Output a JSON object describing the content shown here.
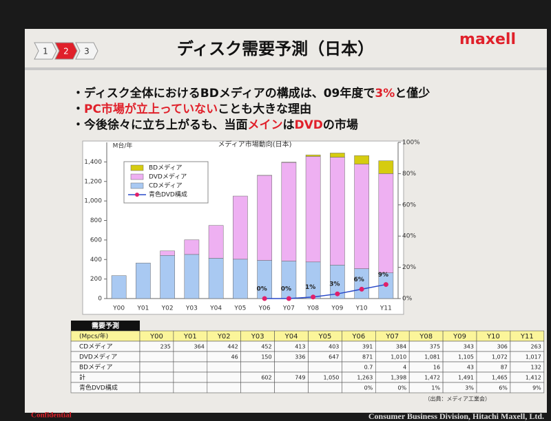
{
  "slide": {
    "title": "ディスク需要予測（日本）",
    "logo": "maxell",
    "nav": [
      "1",
      "2",
      "3"
    ],
    "bullets": [
      [
        {
          "text": "・ディスク全体におけるBDメディアの構成は、09年度で",
          "color": "#111111"
        },
        {
          "text": "3%",
          "color": "#e0202a"
        },
        {
          "text": "と僅少",
          "color": "#111111"
        }
      ],
      [
        {
          "text": "・",
          "color": "#111111"
        },
        {
          "text": "PC市場が立上っていない",
          "color": "#e0202a"
        },
        {
          "text": "ことも大きな理由",
          "color": "#111111"
        }
      ],
      [
        {
          "text": "・今後徐々に立ち上がるも、当面",
          "color": "#111111"
        },
        {
          "text": "メイン",
          "color": "#e0202a"
        },
        {
          "text": "は",
          "color": "#111111"
        },
        {
          "text": "DVD",
          "color": "#e0202a"
        },
        {
          "text": "の市場",
          "color": "#111111"
        }
      ]
    ],
    "footer_left": "Confidential",
    "footer_right": "Consumer Business Division, Hitachi Maxell, Ltd."
  },
  "chart_data": {
    "type": "bar",
    "stacked": true,
    "title": "メディア市場動向(日本)",
    "ylabel": "M台/年",
    "categories": [
      "Y00",
      "Y01",
      "Y02",
      "Y03",
      "Y04",
      "Y05",
      "Y06",
      "Y07",
      "Y08",
      "Y09",
      "Y10",
      "Y11"
    ],
    "series": [
      {
        "name": "CDメディア",
        "color": "#a9c9f2",
        "values": [
          235,
          364,
          442,
          452,
          413,
          403,
          391,
          384,
          375,
          343,
          306,
          263
        ]
      },
      {
        "name": "DVDメディア",
        "color": "#eeb0f2",
        "values": [
          null,
          null,
          46,
          150,
          336,
          647,
          871,
          1010,
          1081,
          1105,
          1072,
          1017
        ]
      },
      {
        "name": "BDメディア",
        "color": "#d6cc10",
        "values": [
          null,
          null,
          null,
          null,
          null,
          null,
          0.7,
          4,
          16,
          43,
          87,
          132
        ]
      },
      {
        "name": "青色DVD構成",
        "color": "#2848c8",
        "marker_color": "#e0206a",
        "type": "line",
        "axis": "y2",
        "values": [
          null,
          null,
          null,
          null,
          null,
          null,
          0,
          0,
          1,
          3,
          6,
          9
        ],
        "value_labels": [
          null,
          null,
          null,
          null,
          null,
          null,
          "0%",
          "0%",
          "1%",
          "3%",
          "6%",
          "9%"
        ]
      }
    ],
    "ylim": [
      0,
      1600
    ],
    "yticks": [
      0,
      200,
      400,
      600,
      800,
      {
        "value": 1000,
        "label": "1,000"
      },
      {
        "value": 1200,
        "label": "1,200"
      },
      {
        "value": 1400,
        "label": "1,400"
      }
    ],
    "y2lim": [
      0,
      100
    ],
    "y2ticks": [
      {
        "value": 0,
        "label": "0%"
      },
      {
        "value": 20,
        "label": "20%"
      },
      {
        "value": 40,
        "label": "40%"
      },
      {
        "value": 60,
        "label": "60%"
      },
      {
        "value": 80,
        "label": "80%"
      },
      {
        "value": 100,
        "label": "100%"
      }
    ],
    "legend": "upper left",
    "grid": false
  },
  "table": {
    "title": "需要予測",
    "header": [
      "(Mpcs/年)",
      "Y00",
      "Y01",
      "Y02",
      "Y03",
      "Y04",
      "Y05",
      "Y06",
      "Y07",
      "Y08",
      "Y09",
      "Y10",
      "Y11"
    ],
    "rows": [
      [
        "CDメディア",
        "235",
        "364",
        "442",
        "452",
        "413",
        "403",
        "391",
        "384",
        "375",
        "343",
        "306",
        "263"
      ],
      [
        "DVDメディア",
        null,
        null,
        "46",
        "150",
        "336",
        "647",
        "871",
        "1,010",
        "1,081",
        "1,105",
        "1,072",
        "1,017"
      ],
      [
        "BDメディア",
        null,
        null,
        null,
        null,
        null,
        null,
        "0.7",
        "4",
        "16",
        "43",
        "87",
        "132"
      ],
      [
        "計",
        null,
        null,
        null,
        "602",
        "749",
        "1,050",
        "1,263",
        "1,398",
        "1,472",
        "1,491",
        "1,465",
        "1,412"
      ],
      [
        "青色DVD構成",
        null,
        null,
        null,
        null,
        null,
        null,
        "0%",
        "0%",
        "1%",
        "3%",
        "6%",
        "9%"
      ]
    ],
    "source": "（出典：メディア工業会）"
  }
}
